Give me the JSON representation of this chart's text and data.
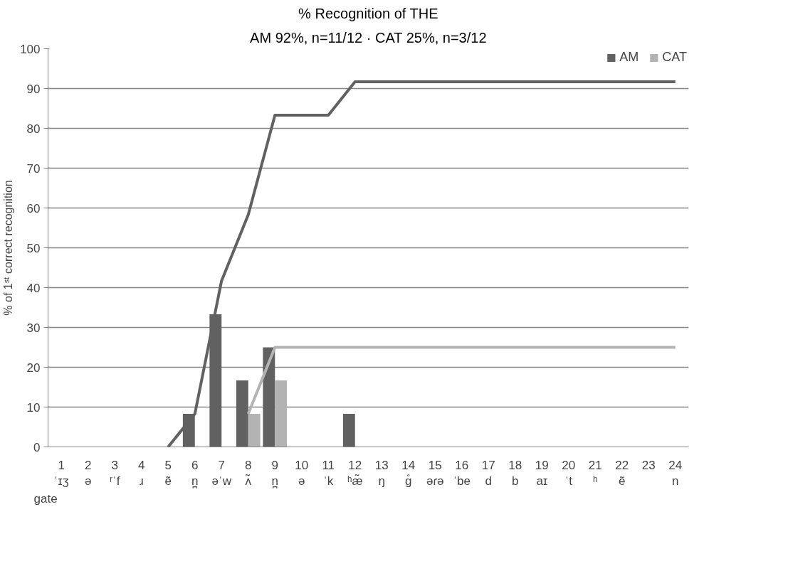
{
  "chart_data": {
    "type": "bar",
    "title": "% Recognition of THE",
    "subtitle": "AM 92%, n=11/12 · CAT 25%, n=3/12",
    "xlabel": "gate",
    "ylabel": "% of 1ˢᵗ correct recognition",
    "categories": [
      "1\nˈɪʒ",
      "2\nə",
      "3\nʳˈf",
      "4\nɹ",
      "5\nẽ",
      "6\nn̪",
      "7\nəˈw",
      "8\nʌ̃",
      "9\nn̪",
      "10\nə",
      "11\nˈk",
      "12\nʰæ̃",
      "13\nŋ",
      "14\nɡ̊",
      "15\nəɾə",
      "16\nˈbe",
      "17\nd",
      "18\nb",
      "19\naɪ",
      "20\nˈt",
      "21\nʰ",
      "22\nẽ",
      "23",
      "24\nn"
    ],
    "series": [
      {
        "name": "AM",
        "color": "#616161",
        "values": [
          0,
          0,
          0,
          0,
          0,
          8.3,
          33.3,
          16.7,
          25,
          0,
          0,
          8.3,
          0,
          0,
          0,
          0,
          0,
          0,
          0,
          0,
          0,
          0,
          0,
          0
        ]
      },
      {
        "name": "CAT",
        "color": "#b3b3b3",
        "values": [
          0,
          0,
          0,
          0,
          0,
          0,
          0,
          8.3,
          16.7,
          0,
          0,
          0,
          0,
          0,
          0,
          0,
          0,
          0,
          0,
          0,
          0,
          0,
          0,
          0
        ]
      },
      {
        "type": "line",
        "color": "#616161",
        "values": [
          null,
          null,
          null,
          null,
          0,
          8.3,
          41.7,
          58.3,
          83.3,
          83.3,
          83.3,
          91.7,
          91.7,
          91.7,
          91.7,
          91.7,
          91.7,
          91.7,
          91.7,
          91.7,
          91.7,
          91.7,
          91.7,
          91.7
        ]
      },
      {
        "type": "line",
        "color": "#b3b3b3",
        "values": [
          null,
          null,
          null,
          null,
          null,
          null,
          null,
          8.3,
          25,
          25,
          25,
          25,
          25,
          25,
          25,
          25,
          25,
          25,
          25,
          25,
          25,
          25,
          25,
          25
        ]
      }
    ],
    "ylim": [
      0,
      100
    ],
    "yticks": [
      0,
      10,
      20,
      30,
      40,
      50,
      60,
      70,
      80,
      90,
      100
    ],
    "grid": "y",
    "legend": "top right",
    "line_style": "solid",
    "marker": "none"
  }
}
